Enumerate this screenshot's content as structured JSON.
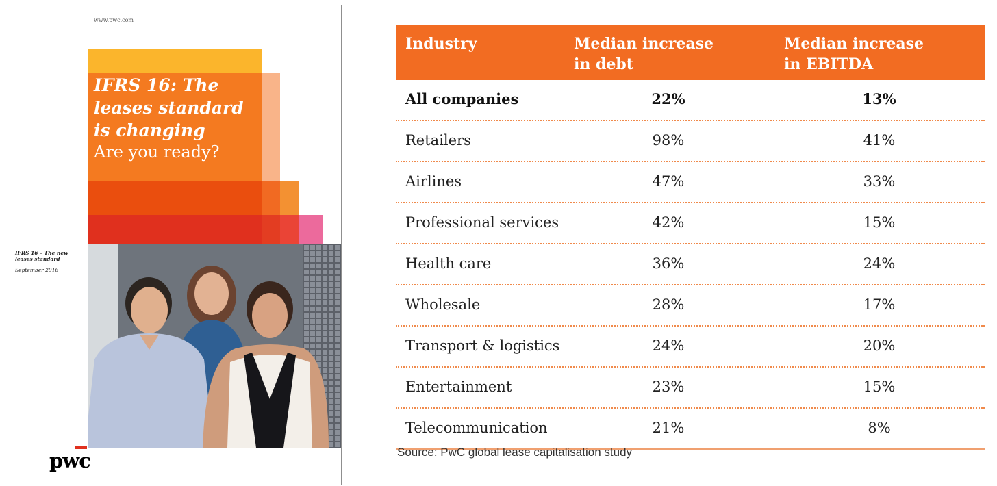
{
  "cover": {
    "url": "www.pwc.com",
    "title_lines": [
      "IFRS 16: The",
      "leases standard",
      "is changing"
    ],
    "subtitle": "Are you ready?",
    "side_title": "IFRS 16 – The new leases standard",
    "side_date": "September 2016",
    "logo": "pwc",
    "colors": {
      "yellow": "#fbb52c",
      "orange": "#f47a20",
      "red": "#e0301e",
      "pink": "#ec6a9c"
    }
  },
  "table": {
    "headers": {
      "industry": "Industry",
      "debt": [
        "Median increase",
        "in debt"
      ],
      "ebitda": [
        "Median increase",
        "in EBITDA"
      ]
    },
    "rows": [
      {
        "industry": "All companies",
        "debt": "22%",
        "ebitda": "13%",
        "bold": true
      },
      {
        "industry": "Retailers",
        "debt": "98%",
        "ebitda": "41%"
      },
      {
        "industry": "Airlines",
        "debt": "47%",
        "ebitda": "33%"
      },
      {
        "industry": "Professional services",
        "debt": "42%",
        "ebitda": "15%"
      },
      {
        "industry": "Health care",
        "debt": "36%",
        "ebitda": "24%"
      },
      {
        "industry": "Wholesale",
        "debt": "28%",
        "ebitda": "17%"
      },
      {
        "industry": "Transport & logistics",
        "debt": "24%",
        "ebitda": "20%"
      },
      {
        "industry": "Entertainment",
        "debt": "23%",
        "ebitda": "15%"
      },
      {
        "industry": "Telecommunication",
        "debt": "21%",
        "ebitda": "8%"
      }
    ],
    "header_color": "#f26c22",
    "source": "Source: PwC global lease capitalisation study"
  }
}
